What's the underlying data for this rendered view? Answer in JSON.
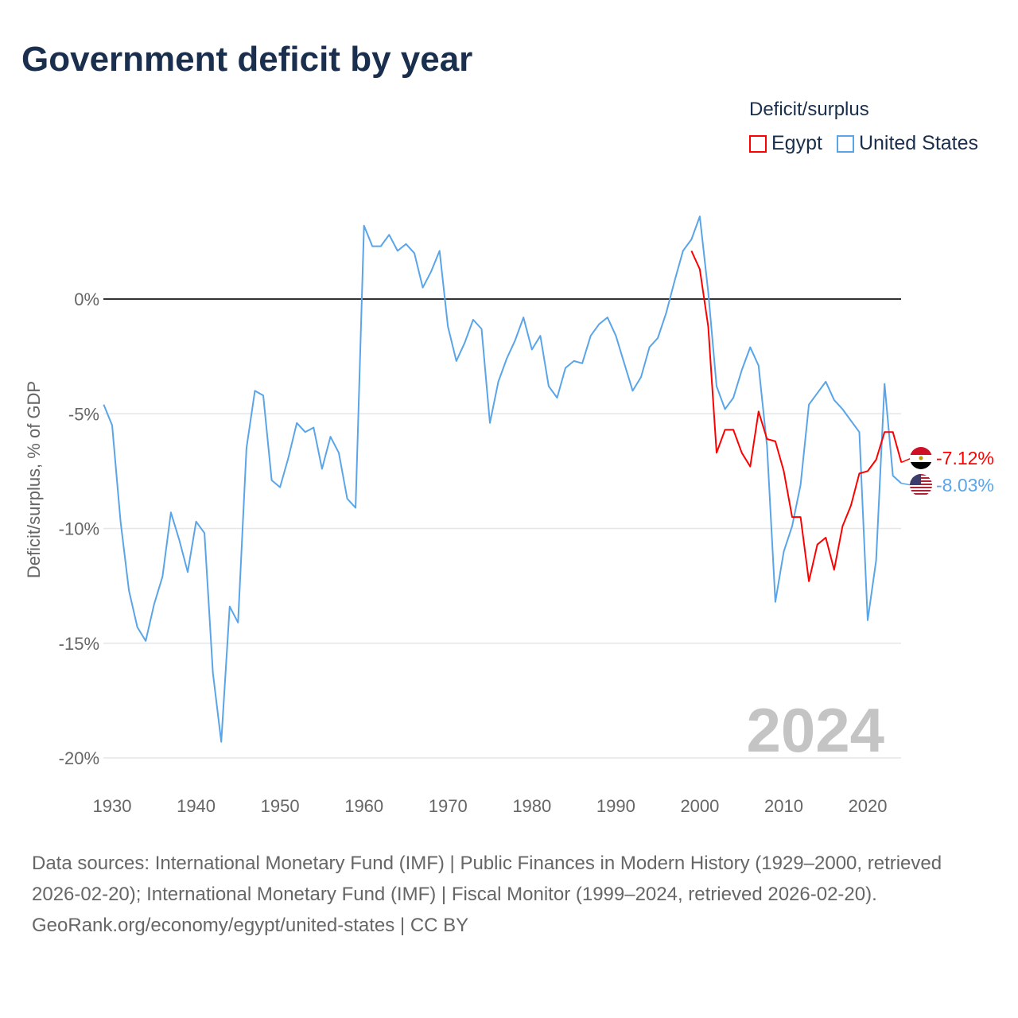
{
  "title": "Government deficit by year",
  "legend": {
    "title": "Deficit/surplus",
    "items": [
      {
        "label": "Egypt",
        "color": "#ff0000"
      },
      {
        "label": "United States",
        "color": "#5aa5e8"
      }
    ]
  },
  "footer": {
    "sources": "Data sources: International Monetary Fund (IMF) | Public Finances in Modern History (1929–2000, retrieved 2026-02-20); International Monetary Fund (IMF) | Fiscal Monitor (1999–2024, retrieved 2026-02-20).",
    "credit": "GeoRank.org/economy/egypt/united-states | CC BY"
  },
  "chart_data": {
    "type": "line",
    "title": "Government deficit by year",
    "ylabel": "Deficit/surplus, % of GDP",
    "xlabel": "",
    "xlim": [
      1929,
      2024
    ],
    "ylim": [
      -21,
      4
    ],
    "x_ticks": [
      1930,
      1940,
      1950,
      1960,
      1970,
      1980,
      1990,
      2000,
      2010,
      2020
    ],
    "x_tick_labels": [
      "1930",
      "1940",
      "1950",
      "1960",
      "1970",
      "1980",
      "1990",
      "2000",
      "2010",
      "2020"
    ],
    "y_ticks": [
      0,
      -5,
      -10,
      -15,
      -20
    ],
    "y_tick_labels": [
      "0%",
      "-5%",
      "-10%",
      "-15%",
      "-20%"
    ],
    "watermark_year": "2024",
    "series": [
      {
        "name": "United States",
        "color": "#5aa5e8",
        "end_label": "-8.03%",
        "start_year": 1929,
        "values": [
          -4.6,
          -5.5,
          -9.7,
          -12.7,
          -14.3,
          -14.9,
          -13.3,
          -12.1,
          -9.3,
          -10.5,
          -11.9,
          -9.7,
          -10.2,
          -16.3,
          -19.3,
          -13.4,
          -14.1,
          -6.5,
          -4.0,
          -4.2,
          -7.9,
          -8.2,
          -6.9,
          -5.4,
          -5.8,
          -5.6,
          -7.4,
          -6.0,
          -6.7,
          -8.7,
          -9.1,
          3.2,
          2.3,
          2.3,
          2.8,
          2.1,
          2.4,
          2.0,
          0.5,
          1.2,
          2.1,
          -1.2,
          -2.7,
          -1.9,
          -0.9,
          -1.3,
          -5.4,
          -3.6,
          -2.6,
          -1.8,
          -0.8,
          -2.2,
          -1.6,
          -3.8,
          -4.3,
          -3.0,
          -2.7,
          -2.8,
          -1.6,
          -1.1,
          -0.8,
          -1.6,
          -2.8,
          -4.0,
          -3.4,
          -2.1,
          -1.7,
          -0.6,
          0.8,
          2.1,
          2.6,
          3.6,
          0.3,
          -3.8,
          -4.8,
          -4.3,
          -3.1,
          -2.1,
          -2.9,
          -6.4,
          -13.2,
          -11.0,
          -9.9,
          -8.1,
          -4.6,
          -4.1,
          -3.6,
          -4.4,
          -4.8,
          -5.3,
          -5.8,
          -14.0,
          -11.4,
          -3.7,
          -7.7,
          -8.03
        ]
      },
      {
        "name": "Egypt",
        "color": "#ff0000",
        "end_label": "-7.12%",
        "start_year": 1999,
        "values": [
          2.1,
          1.3,
          -1.2,
          -6.7,
          -5.7,
          -5.7,
          -6.7,
          -7.3,
          -4.9,
          -6.1,
          -6.2,
          -7.5,
          -9.5,
          -9.5,
          -12.3,
          -10.7,
          -10.4,
          -11.8,
          -9.9,
          -9.0,
          -7.6,
          -7.5,
          -7.0,
          -5.8,
          -5.8,
          -7.12
        ]
      }
    ]
  }
}
